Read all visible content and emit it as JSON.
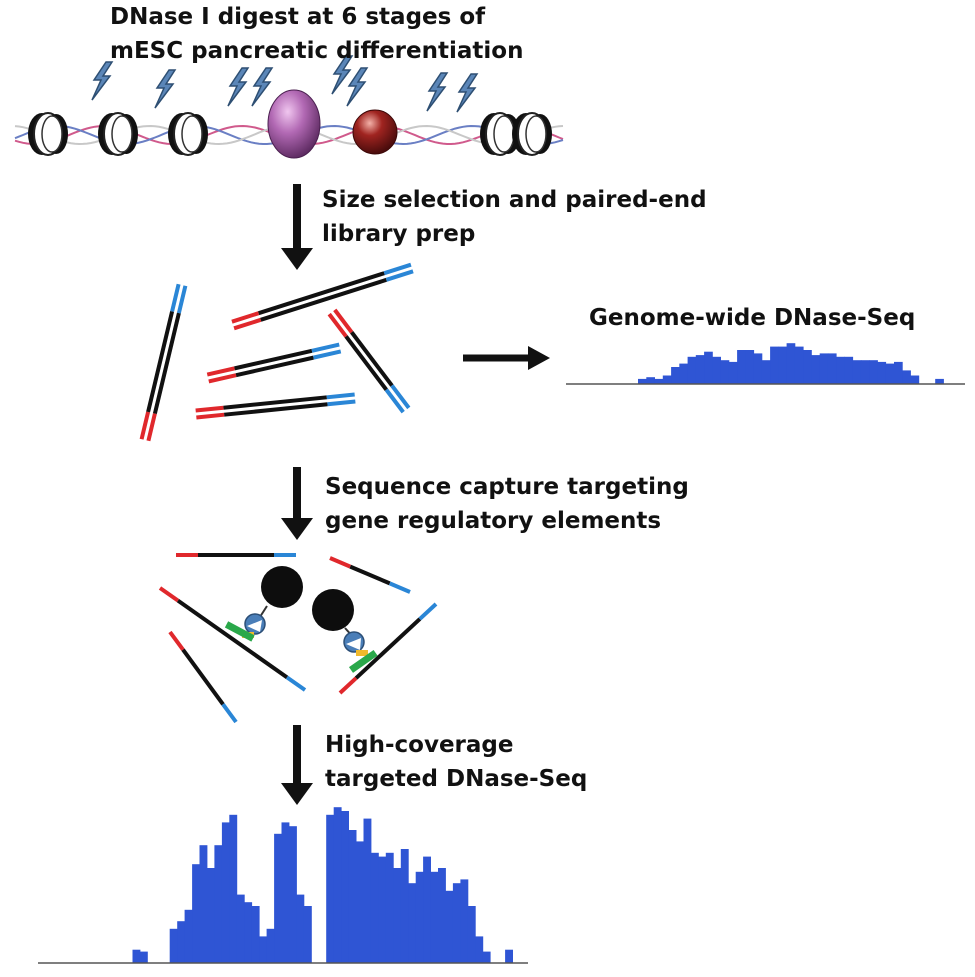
{
  "colors": {
    "bar": "#2f55d4",
    "fragment_end_left": "#e0282c",
    "fragment_end_right": "#2a86d6",
    "fragment_core": "#111111",
    "dnase_icon": "#5b86b8",
    "histone_stroke": "#222222",
    "protein_purple": "#a35aa8",
    "protein_red": "#8b1a1a",
    "bead": "#0d0d0d",
    "capture_probe": "#2aa84a",
    "capture_link": "#f0b92c",
    "capture_binder": "#4a7eb8"
  },
  "labels": {
    "title_line1": "DNase I digest at 6 stages of",
    "title_line2": "mESC pancreatic differentiation",
    "step1_line1": "Size selection and paired-end",
    "step1_line2": "library prep",
    "genome_wide": "Genome-wide DNase-Seq",
    "step2_line1": "Sequence capture targeting",
    "step2_line2": "gene regulatory elements",
    "step3_line1": "High-coverage",
    "step3_line2": "targeted DNase-Seq"
  },
  "icons": [
    "lightning-icon",
    "histone-icon",
    "dna-helix-icon",
    "protein-icon",
    "bead-icon",
    "arrow-icon"
  ],
  "genome_wide_profile": [
    0,
    0,
    0,
    0,
    0,
    0,
    0,
    0,
    3,
    4,
    3,
    5,
    10,
    12,
    16,
    17,
    19,
    16,
    14,
    13,
    20,
    20,
    18,
    14,
    22,
    22,
    24,
    22,
    20,
    17,
    18,
    18,
    16,
    16,
    14,
    14,
    14,
    13,
    12,
    13,
    8,
    5,
    0,
    0,
    3,
    0,
    0
  ],
  "targeted_profile": [
    0,
    7,
    6,
    0,
    0,
    0,
    18,
    22,
    28,
    52,
    62,
    50,
    62,
    74,
    78,
    36,
    32,
    30,
    14,
    18,
    68,
    74,
    72,
    36,
    30,
    0,
    0,
    78,
    82,
    80,
    70,
    64,
    76,
    58,
    56,
    58,
    50,
    60,
    42,
    48,
    56,
    48,
    50,
    38,
    42,
    44,
    30,
    14,
    6,
    0,
    0,
    7,
    0
  ]
}
